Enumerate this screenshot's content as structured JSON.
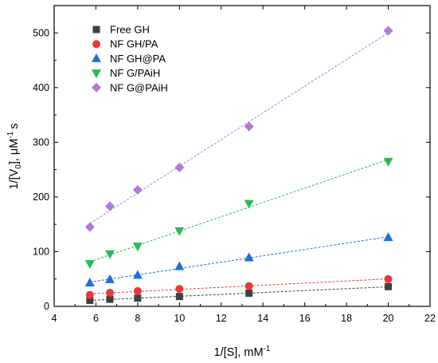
{
  "chart_data": {
    "type": "scatter",
    "xlabel": {
      "base": "1/[S], mM",
      "sup": "-1"
    },
    "ylabel": {
      "p1": "1/[V",
      "sub": "0",
      "p2": "], μM",
      "sup": "-1",
      "p3": "s"
    },
    "xlim": [
      4,
      22
    ],
    "ylim": [
      0,
      550
    ],
    "xticks": [
      4,
      6,
      8,
      10,
      12,
      14,
      16,
      18,
      20,
      22
    ],
    "yticks": [
      0,
      100,
      200,
      300,
      400,
      500
    ],
    "legend_position": "top-left",
    "trendlines": "dashed linear fit per series",
    "series": [
      {
        "name": "Free GH",
        "color": "#404040",
        "marker": "square",
        "x": [
          5.71,
          6.67,
          8,
          10,
          13.33,
          20
        ],
        "y": [
          11,
          13,
          15,
          18,
          24,
          36
        ]
      },
      {
        "name": "NF GH/PA",
        "color": "#e8383d",
        "marker": "circle",
        "x": [
          5.71,
          6.67,
          8,
          10,
          13.33,
          20
        ],
        "y": [
          21,
          25,
          28,
          32,
          37,
          50
        ]
      },
      {
        "name": "NF GH@PA",
        "color": "#1f6fd6",
        "marker": "triangle-up",
        "x": [
          5.71,
          6.67,
          8,
          10,
          13.33,
          20
        ],
        "y": [
          43,
          49,
          57,
          73,
          89,
          126
        ]
      },
      {
        "name": "NF G/PAiH",
        "color": "#2eb85c",
        "marker": "triangle-down",
        "x": [
          5.71,
          6.67,
          8,
          10,
          13.33,
          20
        ],
        "y": [
          78,
          96,
          110,
          138,
          188,
          265
        ]
      },
      {
        "name": "NF G@PAiH",
        "color": "#b07ad9",
        "marker": "diamond",
        "x": [
          5.71,
          6.67,
          8,
          10,
          13.33,
          20
        ],
        "y": [
          145,
          183,
          213,
          254,
          329,
          504
        ]
      }
    ]
  }
}
